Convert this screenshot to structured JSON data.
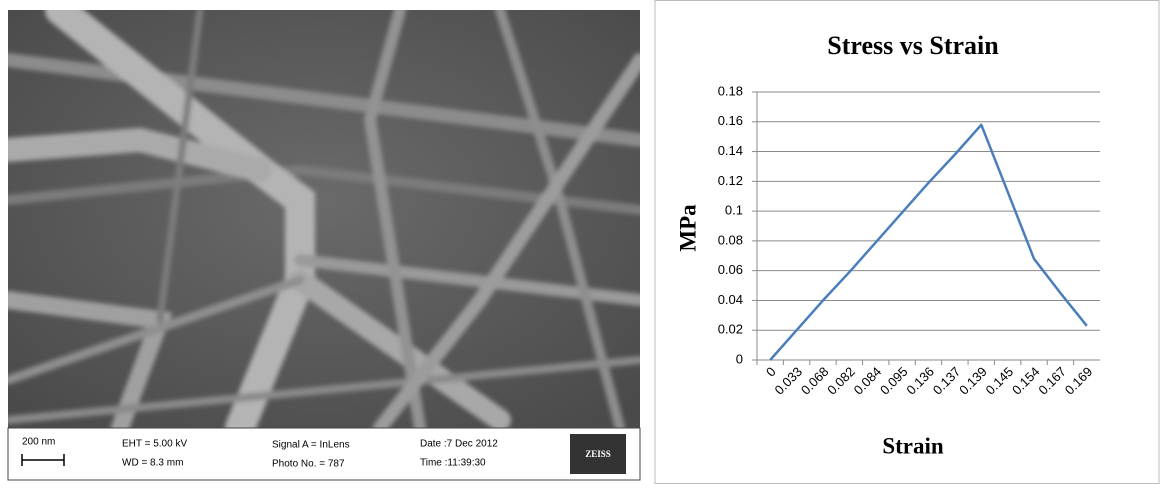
{
  "micrograph": {
    "scale_bar": "200 nm",
    "eht": "EHT =  5.00 kV",
    "wd": "WD =  8.3 mm",
    "signal": "Signal A = InLens",
    "photo_no": "Photo No. = 787",
    "date": "Date :7 Dec 2012",
    "time": "Time :11:39:30",
    "logo": "ZEISS"
  },
  "chart_data": {
    "type": "line",
    "title": "Stress vs Strain",
    "x_label": "Strain",
    "y_label": "MPa",
    "categories": [
      "0",
      "0.033",
      "0.068",
      "0.082",
      "0.084",
      "0.095",
      "0.136",
      "0.137",
      "0.139",
      "0.145",
      "0.154",
      "0.167",
      "0.169"
    ],
    "values": [
      0,
      0.02,
      0.04,
      0.059,
      0.079,
      0.099,
      0.119,
      0.138,
      0.158,
      0.113,
      0.068,
      0.045,
      0.023
    ],
    "color": "#4a7ebb",
    "ylim": [
      0,
      0.18
    ],
    "yticks": [
      0,
      0.02,
      0.04,
      0.06,
      0.08,
      0.1,
      0.12,
      0.14,
      0.16,
      0.18
    ],
    "grid": true
  }
}
